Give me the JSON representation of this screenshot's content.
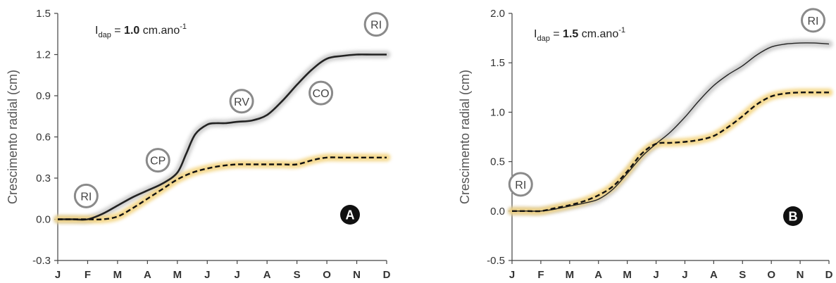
{
  "chart_data": [
    {
      "type": "line",
      "panel_label": "A",
      "formula": {
        "symbol": "I",
        "subscript": "dap",
        "equals": " = ",
        "value": "1.0",
        "unit": " cm.ano",
        "unit_sup": "-1"
      },
      "ylabel": "Crescimento radial (cm)",
      "ylim": [
        -0.3,
        1.5
      ],
      "yticks": [
        "-0.3",
        "0.0",
        "0.3",
        "0.6",
        "0.9",
        "1.2",
        "1.5"
      ],
      "yticks_values": [
        -0.3,
        0.0,
        0.3,
        0.6,
        0.9,
        1.2,
        1.5
      ],
      "xticks": [
        "J",
        "F",
        "M",
        "A",
        "M",
        "J",
        "J",
        "A",
        "S",
        "O",
        "N",
        "D"
      ],
      "series": [
        {
          "style": "solid",
          "color": "#222222",
          "band_color": "#c8c8c8",
          "x": [
            0,
            0.5,
            1,
            1.5,
            2,
            2.5,
            3,
            3.5,
            4,
            4.3,
            4.6,
            5,
            5.3,
            5.6,
            6,
            6.5,
            7,
            7.5,
            8,
            8.5,
            9,
            9.5,
            10,
            10.5,
            11
          ],
          "y": [
            0.0,
            0.0,
            0.0,
            0.04,
            0.1,
            0.16,
            0.21,
            0.26,
            0.34,
            0.48,
            0.62,
            0.69,
            0.7,
            0.7,
            0.71,
            0.72,
            0.76,
            0.86,
            0.98,
            1.09,
            1.17,
            1.19,
            1.2,
            1.2,
            1.2
          ]
        },
        {
          "style": "dashed",
          "color": "#111111",
          "band_color": "#f3d27a",
          "x": [
            0,
            0.5,
            1,
            1.5,
            2,
            2.5,
            3,
            3.5,
            4,
            4.5,
            5,
            5.5,
            6,
            6.5,
            7,
            7.5,
            8,
            8.5,
            9,
            9.5,
            10,
            10.5,
            11
          ],
          "y": [
            0.0,
            0.0,
            0.0,
            0.0,
            0.02,
            0.08,
            0.15,
            0.22,
            0.29,
            0.34,
            0.37,
            0.39,
            0.4,
            0.4,
            0.4,
            0.4,
            0.4,
            0.43,
            0.45,
            0.45,
            0.45,
            0.45,
            0.45
          ]
        }
      ],
      "annotations": [
        {
          "label": "RI",
          "x": 0.95,
          "y": 0.17
        },
        {
          "label": "CP",
          "x": 3.35,
          "y": 0.43
        },
        {
          "label": "RV",
          "x": 6.15,
          "y": 0.86
        },
        {
          "label": "CO",
          "x": 8.8,
          "y": 0.92
        },
        {
          "label": "RI",
          "x": 10.65,
          "y": 1.42
        }
      ]
    },
    {
      "type": "line",
      "panel_label": "B",
      "formula": {
        "symbol": "I",
        "subscript": "dap",
        "equals": " = ",
        "value": "1.5",
        "unit": " cm.ano",
        "unit_sup": "-1"
      },
      "ylabel": "Crescimento radial (cm)",
      "ylim": [
        -0.5,
        2.0
      ],
      "yticks": [
        "-0.5",
        "0.0",
        "0.5",
        "1.0",
        "1.5",
        "2.0"
      ],
      "yticks_values": [
        -0.5,
        0.0,
        0.5,
        1.0,
        1.5,
        2.0
      ],
      "xticks": [
        "J",
        "F",
        "M",
        "A",
        "M",
        "J",
        "J",
        "A",
        "S",
        "O",
        "N",
        "D"
      ],
      "series": [
        {
          "style": "solid",
          "color": "#222222",
          "band_color": "#c8c8c8",
          "x": [
            0,
            0.5,
            1,
            1.5,
            2,
            2.5,
            3,
            3.5,
            4,
            4.5,
            5,
            5.5,
            6,
            6.5,
            7,
            7.5,
            8,
            8.5,
            9,
            9.5,
            10,
            10.5,
            11
          ],
          "y": [
            0.0,
            0.0,
            0.0,
            0.02,
            0.05,
            0.08,
            0.12,
            0.22,
            0.38,
            0.55,
            0.68,
            0.8,
            0.95,
            1.12,
            1.27,
            1.38,
            1.47,
            1.58,
            1.66,
            1.69,
            1.7,
            1.7,
            1.69
          ]
        },
        {
          "style": "dashed",
          "color": "#111111",
          "band_color": "#f3d27a",
          "x": [
            0,
            0.5,
            1,
            1.5,
            2,
            2.5,
            3,
            3.5,
            4,
            4.5,
            5,
            5.5,
            6,
            6.5,
            7,
            7.5,
            8,
            8.5,
            9,
            9.5,
            10,
            10.5,
            11
          ],
          "y": [
            0.0,
            0.0,
            0.0,
            0.03,
            0.06,
            0.1,
            0.16,
            0.25,
            0.4,
            0.58,
            0.68,
            0.69,
            0.7,
            0.72,
            0.76,
            0.85,
            0.96,
            1.08,
            1.16,
            1.19,
            1.2,
            1.2,
            1.2
          ]
        }
      ],
      "annotations": [
        {
          "label": "RI",
          "x": 0.3,
          "y": 0.27
        },
        {
          "label": "RI",
          "x": 10.45,
          "y": 1.93
        }
      ]
    }
  ]
}
